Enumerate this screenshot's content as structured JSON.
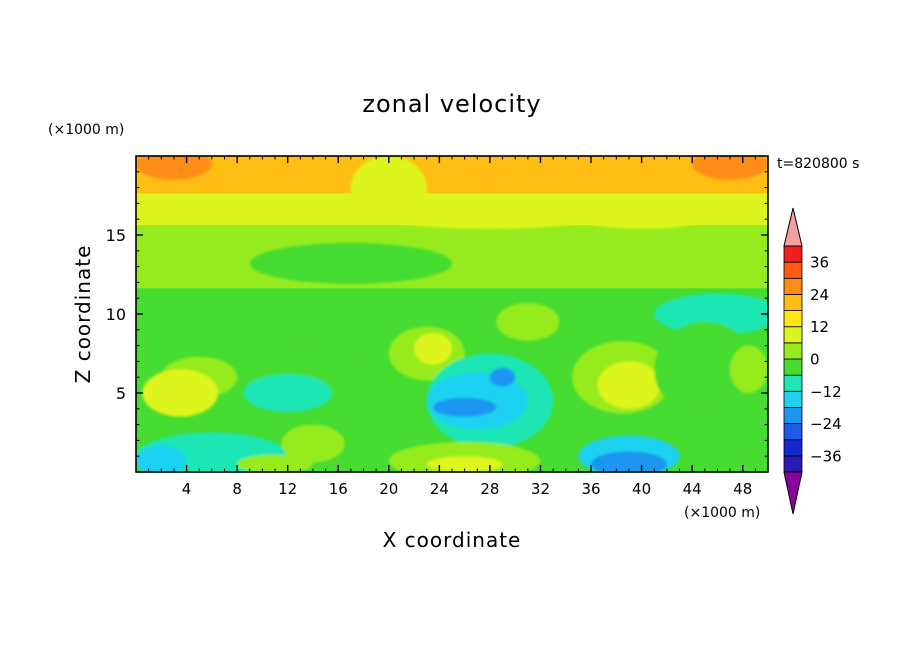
{
  "chart_data": {
    "type": "heatmap",
    "title": "zonal velocity",
    "xlabel": "X coordinate",
    "ylabel": "Z coordinate",
    "x_units": "(×1000 m)",
    "y_units": "(×1000 m)",
    "time_label": "t=820800 s",
    "xlim": [
      0,
      50
    ],
    "ylim": [
      0,
      20
    ],
    "x_ticks": [
      4,
      8,
      12,
      16,
      20,
      24,
      28,
      32,
      36,
      40,
      44,
      48
    ],
    "y_ticks": [
      5,
      10,
      15
    ],
    "grid": false,
    "colorbar": {
      "placement": "right",
      "levels": [
        -42,
        -36,
        -30,
        -24,
        -18,
        -12,
        -6,
        0,
        6,
        12,
        18,
        24,
        30,
        36,
        42
      ],
      "tick_labels": [
        "36",
        "24",
        "12",
        "0",
        "−12",
        "−24",
        "−36"
      ],
      "tick_values": [
        36,
        24,
        12,
        0,
        -12,
        -24,
        -36
      ],
      "colors": [
        "#6a00a8",
        "#2a1cb0",
        "#1428d0",
        "#1e5ae6",
        "#1e96f0",
        "#1ed2f0",
        "#1ee6b4",
        "#46dc32",
        "#96eb1e",
        "#dcf51e",
        "#ffe614",
        "#ffbe14",
        "#ff8c14",
        "#ff5a14",
        "#f01e1e",
        "#d20000"
      ],
      "under_color": "#8c00a0",
      "over_color": "#f5a0a0"
    },
    "bands": [
      {
        "z": [
          17.5,
          20
        ],
        "value": 18
      },
      {
        "z": [
          15.5,
          17.5
        ],
        "value": 9
      },
      {
        "z": [
          11.5,
          15.5
        ],
        "value": 3
      },
      {
        "z": [
          0,
          11.5
        ],
        "value": -3
      }
    ],
    "features": [
      {
        "x": 3,
        "z": 19.5,
        "rx": 3,
        "rz": 1,
        "value": 24
      },
      {
        "x": 47,
        "z": 19.5,
        "rx": 3,
        "rz": 1,
        "value": 24
      },
      {
        "x": 20,
        "z": 18,
        "rx": 3,
        "rz": 2,
        "value": 9
      },
      {
        "x": 40,
        "z": 16,
        "rx": 5,
        "rz": 0.6,
        "value": 9
      },
      {
        "x": 28,
        "z": 16,
        "rx": 8,
        "rz": 0.6,
        "value": 9
      },
      {
        "x": 17,
        "z": 13.2,
        "rx": 8,
        "rz": 1.3,
        "value": -3
      },
      {
        "x": 46,
        "z": 10,
        "rx": 5,
        "rz": 1.3,
        "value": -9
      },
      {
        "x": 5,
        "z": 6,
        "rx": 3,
        "rz": 1.3,
        "value": 3
      },
      {
        "x": 3.5,
        "z": 5,
        "rx": 3,
        "rz": 1.5,
        "value": 9
      },
      {
        "x": 13,
        "z": 6.5,
        "rx": 5,
        "rz": 2,
        "value": -3
      },
      {
        "x": 12,
        "z": 5,
        "rx": 3.5,
        "rz": 1.2,
        "value": -9
      },
      {
        "x": 23,
        "z": 7.5,
        "rx": 3,
        "rz": 1.7,
        "value": 3
      },
      {
        "x": 23.5,
        "z": 7.8,
        "rx": 1.5,
        "rz": 1,
        "value": 9
      },
      {
        "x": 31,
        "z": 9.5,
        "rx": 2.5,
        "rz": 1.2,
        "value": 3
      },
      {
        "x": 28,
        "z": 4.5,
        "rx": 5,
        "rz": 3,
        "value": -9
      },
      {
        "x": 27,
        "z": 4.5,
        "rx": 4,
        "rz": 1.8,
        "value": -15
      },
      {
        "x": 26,
        "z": 4.1,
        "rx": 2.5,
        "rz": 0.6,
        "value": -21
      },
      {
        "x": 29,
        "z": 6,
        "rx": 1,
        "rz": 0.6,
        "value": -21
      },
      {
        "x": 38.5,
        "z": 6,
        "rx": 4,
        "rz": 2.3,
        "value": 3
      },
      {
        "x": 39,
        "z": 5.5,
        "rx": 2.5,
        "rz": 1.5,
        "value": 9
      },
      {
        "x": 45,
        "z": 6.5,
        "rx": 4,
        "rz": 3,
        "value": -3
      },
      {
        "x": 48.5,
        "z": 6.5,
        "rx": 1.5,
        "rz": 1.5,
        "value": 3
      },
      {
        "x": 6,
        "z": 1,
        "rx": 6,
        "rz": 1.5,
        "value": -9
      },
      {
        "x": 2,
        "z": 0.7,
        "rx": 2,
        "rz": 1,
        "value": -15
      },
      {
        "x": 14,
        "z": 1.8,
        "rx": 2.5,
        "rz": 1.2,
        "value": 3
      },
      {
        "x": 11,
        "z": 0.5,
        "rx": 3,
        "rz": 0.6,
        "value": 3
      },
      {
        "x": 26,
        "z": 0.7,
        "rx": 6,
        "rz": 1.2,
        "value": 3
      },
      {
        "x": 26,
        "z": 0.5,
        "rx": 3,
        "rz": 0.5,
        "value": 9
      },
      {
        "x": 39,
        "z": 1,
        "rx": 4,
        "rz": 1.3,
        "value": -15
      },
      {
        "x": 39,
        "z": 0.5,
        "rx": 3,
        "rz": 0.8,
        "value": -21
      },
      {
        "x": 46,
        "z": 1.5,
        "rx": 3,
        "rz": 2,
        "value": -3
      }
    ]
  }
}
